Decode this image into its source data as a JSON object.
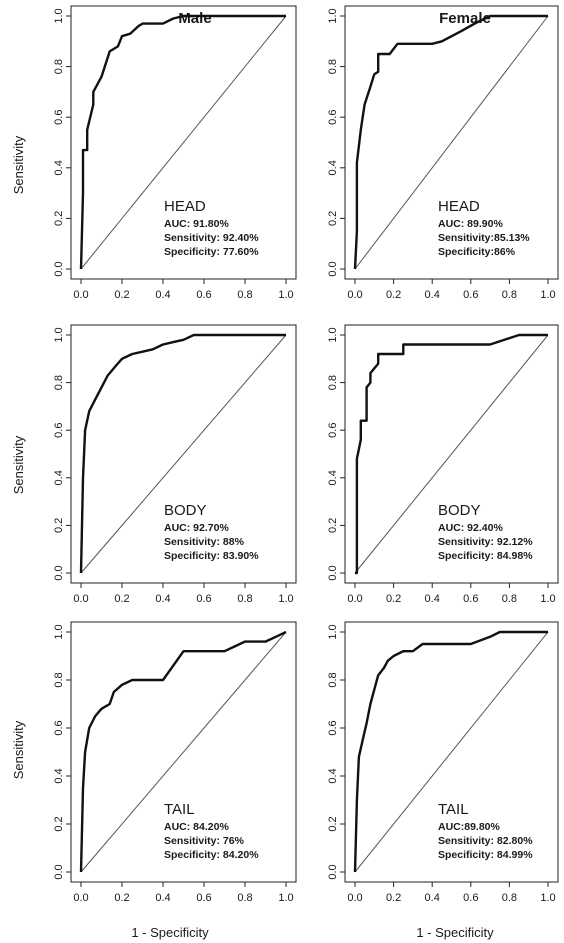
{
  "columns": [
    "Male",
    "Female"
  ],
  "ylabel": "Sensitivity",
  "xlabel": "1 - Specificity",
  "chart_data": [
    {
      "type": "line",
      "column": "Male",
      "region": "HEAD",
      "auc": "AUC: 91.80%",
      "sensitivity": "Sensitivity: 92.40%",
      "specificity": "Specificity: 77.60%",
      "xlim": [
        0,
        1
      ],
      "ylim": [
        0,
        1
      ],
      "grid": false,
      "xticks": [
        "0.0",
        "0.2",
        "0.4",
        "0.6",
        "0.8",
        "1.0"
      ],
      "yticks": [
        "0.0",
        "0.2",
        "0.4",
        "0.6",
        "0.8",
        "1.0"
      ],
      "x": [
        0,
        0.01,
        0.01,
        0.03,
        0.03,
        0.06,
        0.06,
        0.1,
        0.14,
        0.18,
        0.2,
        0.24,
        0.28,
        0.3,
        0.4,
        0.45,
        0.5,
        1.0
      ],
      "y": [
        0,
        0.3,
        0.47,
        0.47,
        0.55,
        0.65,
        0.7,
        0.76,
        0.86,
        0.88,
        0.92,
        0.93,
        0.96,
        0.97,
        0.97,
        0.99,
        1.0,
        1.0
      ]
    },
    {
      "type": "line",
      "column": "Female",
      "region": "HEAD",
      "auc": "AUC: 89.90%",
      "sensitivity": "Sensitivity:85.13%",
      "specificity": "Specificity:86%",
      "xlim": [
        0,
        1
      ],
      "ylim": [
        0,
        1
      ],
      "grid": false,
      "xticks": [
        "0.0",
        "0.2",
        "0.4",
        "0.6",
        "0.8",
        "1.0"
      ],
      "yticks": [
        "0.0",
        "0.2",
        "0.4",
        "0.6",
        "0.8",
        "1.0"
      ],
      "x": [
        0,
        0.01,
        0.01,
        0.03,
        0.05,
        0.08,
        0.1,
        0.12,
        0.12,
        0.18,
        0.2,
        0.22,
        0.3,
        0.4,
        0.45,
        0.55,
        0.62,
        0.7,
        1.0
      ],
      "y": [
        0,
        0.15,
        0.42,
        0.55,
        0.65,
        0.72,
        0.77,
        0.78,
        0.85,
        0.85,
        0.87,
        0.89,
        0.89,
        0.89,
        0.9,
        0.94,
        0.97,
        1.0,
        1.0
      ]
    },
    {
      "type": "line",
      "column": "Male",
      "region": "BODY",
      "auc": "AUC: 92.70%",
      "sensitivity": "Sensitivity: 88%",
      "specificity": "Specificity: 83.90%",
      "xlim": [
        0,
        1
      ],
      "ylim": [
        0,
        1
      ],
      "grid": false,
      "xticks": [
        "0.0",
        "0.2",
        "0.4",
        "0.6",
        "0.8",
        "1.0"
      ],
      "yticks": [
        "0.0",
        "0.2",
        "0.4",
        "0.6",
        "0.8",
        "1.0"
      ],
      "x": [
        0,
        0.01,
        0.02,
        0.04,
        0.07,
        0.1,
        0.13,
        0.17,
        0.2,
        0.25,
        0.3,
        0.35,
        0.4,
        0.45,
        0.5,
        0.55,
        0.6,
        1.0
      ],
      "y": [
        0,
        0.4,
        0.6,
        0.68,
        0.73,
        0.78,
        0.83,
        0.87,
        0.9,
        0.92,
        0.93,
        0.94,
        0.96,
        0.97,
        0.98,
        1.0,
        1.0,
        1.0
      ]
    },
    {
      "type": "line",
      "column": "Female",
      "region": "BODY",
      "auc": "AUC: 92.40%",
      "sensitivity": "Sensitivity:  92.12%",
      "specificity": "Specificity:  84.98%",
      "xlim": [
        0,
        1
      ],
      "ylim": [
        0,
        1
      ],
      "grid": false,
      "xticks": [
        "0.0",
        "0.2",
        "0.4",
        "0.6",
        "0.8",
        "1.0"
      ],
      "yticks": [
        "0.0",
        "0.2",
        "0.4",
        "0.6",
        "0.8",
        "1.0"
      ],
      "x": [
        0,
        0.01,
        0.01,
        0.03,
        0.03,
        0.06,
        0.06,
        0.08,
        0.08,
        0.12,
        0.12,
        0.2,
        0.2,
        0.25,
        0.25,
        0.7,
        0.85,
        1.0
      ],
      "y": [
        0,
        0.0,
        0.48,
        0.56,
        0.64,
        0.64,
        0.78,
        0.8,
        0.84,
        0.88,
        0.92,
        0.92,
        0.92,
        0.92,
        0.96,
        0.96,
        1.0,
        1.0
      ]
    },
    {
      "type": "line",
      "column": "Male",
      "region": "TAIL",
      "auc": "AUC: 84.20%",
      "sensitivity": "Sensitivity: 76%",
      "specificity": "Specificity: 84.20%",
      "xlim": [
        0,
        1
      ],
      "ylim": [
        0,
        1
      ],
      "grid": false,
      "xticks": [
        "0.0",
        "0.2",
        "0.4",
        "0.6",
        "0.8",
        "1.0"
      ],
      "yticks": [
        "0.0",
        "0.2",
        "0.4",
        "0.6",
        "0.8",
        "1.0"
      ],
      "x": [
        0,
        0.01,
        0.02,
        0.04,
        0.07,
        0.1,
        0.14,
        0.16,
        0.2,
        0.25,
        0.4,
        0.45,
        0.5,
        0.7,
        0.75,
        0.8,
        0.9,
        0.95,
        1.0
      ],
      "y": [
        0,
        0.35,
        0.5,
        0.6,
        0.65,
        0.68,
        0.7,
        0.75,
        0.78,
        0.8,
        0.8,
        0.86,
        0.92,
        0.92,
        0.94,
        0.96,
        0.96,
        0.98,
        1.0
      ]
    },
    {
      "type": "line",
      "column": "Female",
      "region": "TAIL",
      "auc": "AUC:89.80%",
      "sensitivity": "Sensitivity: 82.80%",
      "specificity": "Specificity: 84.99%",
      "xlim": [
        0,
        1
      ],
      "ylim": [
        0,
        1
      ],
      "grid": false,
      "xticks": [
        "0.0",
        "0.2",
        "0.4",
        "0.6",
        "0.8",
        "1.0"
      ],
      "yticks": [
        "0.0",
        "0.2",
        "0.4",
        "0.6",
        "0.8",
        "1.0"
      ],
      "x": [
        0,
        0.01,
        0.02,
        0.04,
        0.06,
        0.08,
        0.1,
        0.12,
        0.15,
        0.17,
        0.2,
        0.25,
        0.3,
        0.35,
        0.4,
        0.6,
        0.7,
        0.75,
        1.0
      ],
      "y": [
        0,
        0.3,
        0.48,
        0.55,
        0.62,
        0.7,
        0.76,
        0.82,
        0.85,
        0.88,
        0.9,
        0.92,
        0.92,
        0.95,
        0.95,
        0.95,
        0.98,
        1.0,
        1.0
      ]
    }
  ]
}
